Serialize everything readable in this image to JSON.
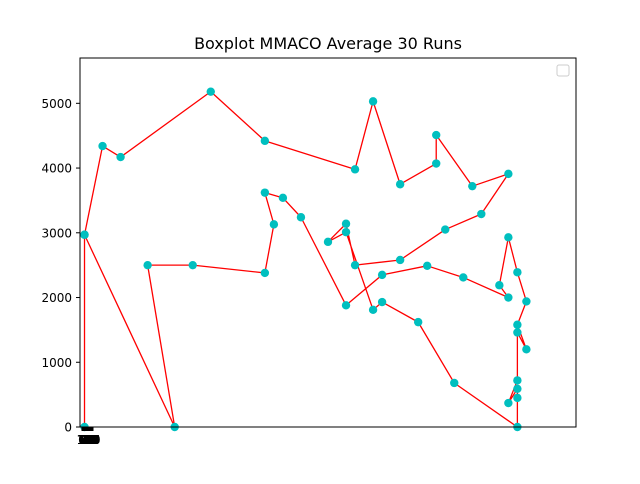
{
  "chart_data": {
    "type": "line",
    "title": "Boxplot MMACO Average 30 Runs",
    "xlabel": "",
    "ylabel": "",
    "xlim": [
      -0.5,
      54.5
    ],
    "ylim": [
      0,
      5700
    ],
    "grid": false,
    "legend": {
      "position": "top-right",
      "entries": []
    },
    "colors": {
      "line": "#ff0000",
      "marker": "#00bfbf"
    },
    "y_ticks": [
      0,
      1000,
      2000,
      3000,
      4000,
      5000
    ],
    "y_tick_labels": [
      "0",
      "1000",
      "2000",
      "3000",
      "4000",
      "5000"
    ],
    "x_tick_labels": [
      "0",
      "1",
      "2",
      "3",
      "4",
      "5",
      "6",
      "7",
      "8",
      "9",
      "10",
      "11",
      "12",
      "13",
      "14",
      "15",
      "16",
      "17",
      "18",
      "19",
      "20",
      "21",
      "22",
      "23",
      "24",
      "25",
      "26",
      "27",
      "28",
      "29",
      "30",
      "31",
      "32",
      "33",
      "34",
      "35",
      "36",
      "37",
      "38",
      "39",
      "40",
      "41",
      "42",
      "43",
      "44",
      "45",
      "46",
      "47",
      "48",
      "49",
      "50"
    ],
    "series": [
      {
        "x": [
          0,
          2,
          4,
          14,
          20,
          30,
          32,
          35,
          39,
          39,
          43,
          47,
          44,
          40,
          35,
          30,
          29,
          27,
          29,
          32,
          33,
          37,
          41,
          48,
          48,
          48,
          47,
          48,
          48,
          49,
          48,
          49,
          48,
          47,
          46,
          47,
          42,
          38,
          33,
          29,
          24,
          22,
          20,
          21,
          20,
          12,
          7,
          10,
          0,
          0
        ],
        "y": [
          2970,
          4340,
          4170,
          5180,
          4420,
          3980,
          5030,
          3750,
          4070,
          4510,
          3720,
          3910,
          3290,
          3050,
          2580,
          2500,
          3140,
          2860,
          3010,
          1810,
          1930,
          1620,
          680,
          0,
          450,
          590,
          370,
          720,
          1460,
          1200,
          1580,
          1940,
          2390,
          2930,
          2190,
          2000,
          2310,
          2490,
          2350,
          1880,
          3240,
          3540,
          3620,
          3130,
          2380,
          2500,
          2500,
          0,
          2970,
          0
        ]
      }
    ]
  }
}
